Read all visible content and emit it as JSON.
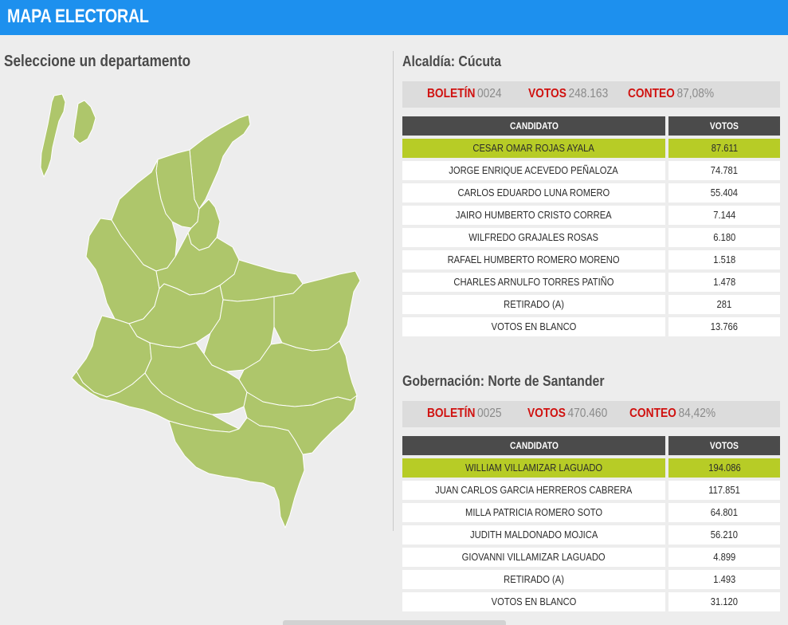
{
  "header": {
    "title": "MAPA ELECTORAL"
  },
  "left": {
    "title": "Seleccione un departamento"
  },
  "colors": {
    "header": "#1d90ee",
    "map_fill": "#aec66b",
    "winner": "#b7cc26",
    "label_red": "#d0110f",
    "table_header": "#4b4b4b"
  },
  "alcaldia": {
    "title": "Alcaldía: Cúcuta",
    "boletin_label": "BOLETÍN",
    "boletin": "0024",
    "votos_label": "VOTOS",
    "votos": "248.163",
    "conteo_label": "CONTEO",
    "conteo": "87,08%",
    "col_candidato": "CANDIDATO",
    "col_votos": "VOTOS",
    "rows": [
      {
        "name": "CESAR OMAR ROJAS AYALA",
        "votes": "87.611"
      },
      {
        "name": "JORGE ENRIQUE ACEVEDO PEÑALOZA",
        "votes": "74.781"
      },
      {
        "name": "CARLOS EDUARDO LUNA ROMERO",
        "votes": "55.404"
      },
      {
        "name": "JAIRO HUMBERTO CRISTO CORREA",
        "votes": "7.144"
      },
      {
        "name": "WILFREDO GRAJALES ROSAS",
        "votes": "6.180"
      },
      {
        "name": "RAFAEL HUMBERTO ROMERO MORENO",
        "votes": "1.518"
      },
      {
        "name": "CHARLES ARNULFO TORRES PATIÑO",
        "votes": "1.478"
      },
      {
        "name": "RETIRADO (A)",
        "votes": "281"
      },
      {
        "name": "VOTOS EN BLANCO",
        "votes": "13.766"
      }
    ]
  },
  "gobernacion": {
    "title": "Gobernación: Norte de Santander",
    "boletin_label": "BOLETÍN",
    "boletin": "0025",
    "votos_label": "VOTOS",
    "votos": "470.460",
    "conteo_label": "CONTEO",
    "conteo": "84,42%",
    "col_candidato": "CANDIDATO",
    "col_votos": "VOTOS",
    "rows": [
      {
        "name": "WILLIAM VILLAMIZAR LAGUADO",
        "votes": "194.086"
      },
      {
        "name": "JUAN CARLOS GARCIA HERREROS CABRERA",
        "votes": "117.851"
      },
      {
        "name": "MILLA PATRICIA ROMERO SOTO",
        "votes": "64.801"
      },
      {
        "name": "JUDITH MALDONADO MOJICA",
        "votes": "56.210"
      },
      {
        "name": "GIOVANNI VILLAMIZAR LAGUADO",
        "votes": "4.899"
      },
      {
        "name": "RETIRADO (A)",
        "votes": "1.493"
      },
      {
        "name": "VOTOS EN BLANCO",
        "votes": "31.120"
      }
    ]
  }
}
